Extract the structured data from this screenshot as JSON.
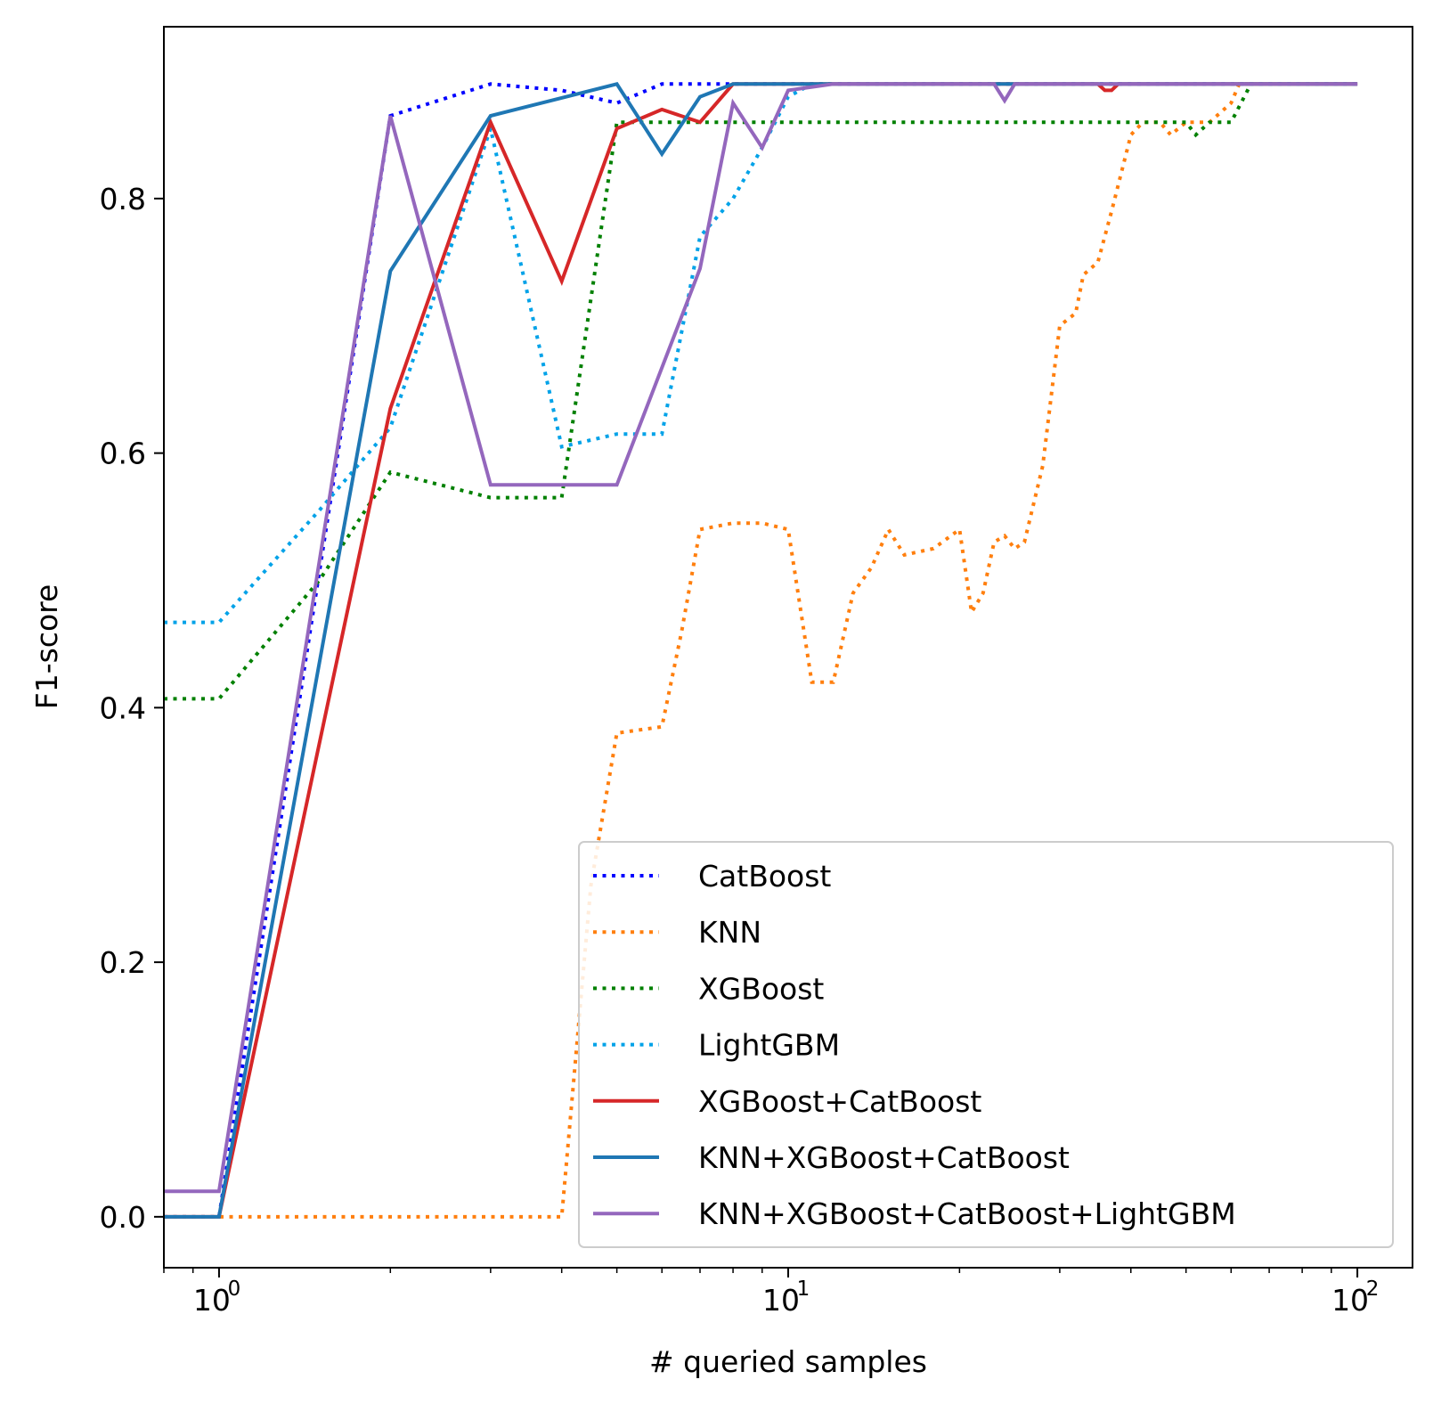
{
  "chart_data": {
    "type": "line",
    "title": "",
    "xlabel": "# queried samples",
    "ylabel": "F1-score",
    "xscale": "log",
    "xlim": [
      0.8,
      125
    ],
    "ylim": [
      -0.04,
      0.935
    ],
    "x_tick_base": "10",
    "x_ticks": [
      {
        "value": 1,
        "exp": "0"
      },
      {
        "value": 10,
        "exp": "1"
      },
      {
        "value": 100,
        "exp": "2"
      }
    ],
    "y_ticks": [
      {
        "value": 0.0,
        "label": "0.0"
      },
      {
        "value": 0.2,
        "label": "0.2"
      },
      {
        "value": 0.4,
        "label": "0.4"
      },
      {
        "value": 0.6,
        "label": "0.6"
      },
      {
        "value": 0.8,
        "label": "0.8"
      }
    ],
    "grid": false,
    "legend_position": "lower-right",
    "series": [
      {
        "name": "CatBoost",
        "color": "#0000ff",
        "style": "dotted",
        "points": [
          [
            0.8,
            0
          ],
          [
            1,
            0
          ],
          [
            2,
            0.865
          ],
          [
            3,
            0.89
          ],
          [
            4,
            0.885
          ],
          [
            5,
            0.875
          ],
          [
            6,
            0.89
          ],
          [
            7,
            0.89
          ],
          [
            8,
            0.89
          ],
          [
            10,
            0.89
          ],
          [
            20,
            0.89
          ],
          [
            50,
            0.89
          ],
          [
            100,
            0.89
          ]
        ]
      },
      {
        "name": "KNN",
        "color": "#ff7f0e",
        "style": "dotted",
        "points": [
          [
            0.8,
            0
          ],
          [
            1,
            0
          ],
          [
            2,
            0
          ],
          [
            3,
            0
          ],
          [
            4,
            0
          ],
          [
            4.5,
            0.26
          ],
          [
            5,
            0.38
          ],
          [
            6,
            0.385
          ],
          [
            6.5,
            0.46
          ],
          [
            7,
            0.54
          ],
          [
            8,
            0.545
          ],
          [
            9,
            0.545
          ],
          [
            10,
            0.54
          ],
          [
            11,
            0.42
          ],
          [
            12,
            0.42
          ],
          [
            13,
            0.49
          ],
          [
            14,
            0.51
          ],
          [
            15,
            0.54
          ],
          [
            16,
            0.52
          ],
          [
            18,
            0.525
          ],
          [
            20,
            0.54
          ],
          [
            21,
            0.475
          ],
          [
            22,
            0.49
          ],
          [
            23,
            0.53
          ],
          [
            24,
            0.535
          ],
          [
            25,
            0.525
          ],
          [
            26,
            0.53
          ],
          [
            28,
            0.59
          ],
          [
            30,
            0.7
          ],
          [
            32,
            0.71
          ],
          [
            33,
            0.74
          ],
          [
            35,
            0.75
          ],
          [
            37,
            0.79
          ],
          [
            40,
            0.85
          ],
          [
            42,
            0.86
          ],
          [
            45,
            0.86
          ],
          [
            47,
            0.85
          ],
          [
            50,
            0.86
          ],
          [
            55,
            0.86
          ],
          [
            60,
            0.875
          ],
          [
            62,
            0.89
          ],
          [
            70,
            0.89
          ],
          [
            100,
            0.89
          ]
        ]
      },
      {
        "name": "XGBoost",
        "color": "#008000",
        "style": "dotted",
        "points": [
          [
            0.8,
            0.407
          ],
          [
            1,
            0.407
          ],
          [
            1.5,
            0.5
          ],
          [
            2,
            0.585
          ],
          [
            3,
            0.565
          ],
          [
            4,
            0.565
          ],
          [
            5,
            0.86
          ],
          [
            10,
            0.86
          ],
          [
            20,
            0.86
          ],
          [
            50,
            0.86
          ],
          [
            52,
            0.85
          ],
          [
            55,
            0.86
          ],
          [
            60,
            0.86
          ],
          [
            65,
            0.89
          ],
          [
            100,
            0.89
          ]
        ]
      },
      {
        "name": "LightGBM",
        "color": "#00a2e8",
        "style": "dotted",
        "points": [
          [
            0.8,
            0.467
          ],
          [
            1,
            0.467
          ],
          [
            1.5,
            0.555
          ],
          [
            2,
            0.62
          ],
          [
            3,
            0.855
          ],
          [
            4,
            0.605
          ],
          [
            5,
            0.615
          ],
          [
            6,
            0.615
          ],
          [
            7,
            0.77
          ],
          [
            8,
            0.8
          ],
          [
            9,
            0.84
          ],
          [
            10,
            0.88
          ],
          [
            11,
            0.89
          ],
          [
            100,
            0.89
          ]
        ]
      },
      {
        "name": "XGBoost+CatBoost",
        "color": "#d62728",
        "style": "solid",
        "points": [
          [
            0.8,
            0
          ],
          [
            1,
            0
          ],
          [
            2,
            0.635
          ],
          [
            3,
            0.86
          ],
          [
            4,
            0.735
          ],
          [
            5,
            0.855
          ],
          [
            6,
            0.87
          ],
          [
            7,
            0.86
          ],
          [
            8,
            0.89
          ],
          [
            10,
            0.89
          ],
          [
            35,
            0.89
          ],
          [
            36,
            0.885
          ],
          [
            37,
            0.885
          ],
          [
            38,
            0.89
          ],
          [
            100,
            0.89
          ]
        ]
      },
      {
        "name": "KNN+XGBoost+CatBoost",
        "color": "#1f77b4",
        "style": "solid",
        "points": [
          [
            0.8,
            0
          ],
          [
            1,
            0
          ],
          [
            2,
            0.743
          ],
          [
            3,
            0.865
          ],
          [
            5,
            0.89
          ],
          [
            6,
            0.835
          ],
          [
            7,
            0.88
          ],
          [
            8,
            0.89
          ],
          [
            10,
            0.89
          ],
          [
            100,
            0.89
          ]
        ]
      },
      {
        "name": "KNN+XGBoost+CatBoost+LightGBM",
        "color": "#9467bd",
        "style": "solid",
        "points": [
          [
            0.8,
            0.02
          ],
          [
            1,
            0.02
          ],
          [
            2,
            0.865
          ],
          [
            3,
            0.575
          ],
          [
            4,
            0.575
          ],
          [
            5,
            0.575
          ],
          [
            7,
            0.745
          ],
          [
            8,
            0.875
          ],
          [
            9,
            0.84
          ],
          [
            10,
            0.885
          ],
          [
            12,
            0.89
          ],
          [
            23,
            0.89
          ],
          [
            24,
            0.877
          ],
          [
            25,
            0.89
          ],
          [
            100,
            0.89
          ]
        ]
      }
    ]
  }
}
